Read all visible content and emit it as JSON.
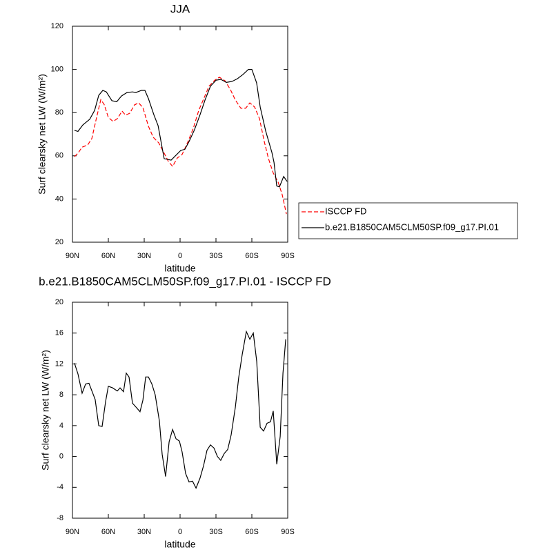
{
  "chart_data": [
    {
      "type": "line",
      "title": "JJA",
      "xlabel": "latitude",
      "ylabel": "Surf clearsky net LW (W/m²)",
      "xlim": [
        90,
        -90
      ],
      "ylim": [
        20,
        120
      ],
      "xticks": [
        {
          "value": 90,
          "label": "90N"
        },
        {
          "value": 60,
          "label": "60N"
        },
        {
          "value": 30,
          "label": "30N"
        },
        0,
        {
          "value": -30,
          "label": "30S"
        },
        {
          "value": -60,
          "label": "60S"
        },
        {
          "value": -90,
          "label": "90S"
        }
      ],
      "yticks": [
        20,
        40,
        60,
        80,
        100,
        120
      ],
      "legend": "right",
      "series": [
        {
          "name": "ISCCP FD",
          "color": "#ff0000",
          "dashed": true,
          "x": [
            88.3,
            85.4,
            81.9,
            77.3,
            73.8,
            69.8,
            66.3,
            63.5,
            60,
            56,
            52.5,
            48.5,
            45.6,
            42.1,
            38.1,
            34.6,
            31.1,
            26.5,
            22.5,
            17.9,
            13.3,
            9.8,
            6.3,
            2.3,
            -1.7,
            -6.4,
            -11,
            -15.6,
            -20.2,
            -24.2,
            -28.9,
            -32.9,
            -37.5,
            -42.1,
            -46.2,
            -50.8,
            -54.8,
            -58.3,
            -62.3,
            -66.4,
            -70.4,
            -73.9,
            -77.9,
            -82,
            -85.4,
            -88.9
          ],
          "values": [
            59.6,
            61.2,
            64,
            65,
            68,
            77.8,
            86,
            83.8,
            77.8,
            75.9,
            77.2,
            80.7,
            78.8,
            79.7,
            83.6,
            84.5,
            82.3,
            73.7,
            68.6,
            66,
            61.2,
            57.4,
            55.1,
            59,
            60.6,
            66.3,
            72.7,
            81,
            87,
            92.2,
            95,
            96.4,
            94.8,
            90.6,
            85.8,
            82,
            82,
            84.5,
            82.6,
            77.2,
            66.6,
            58.7,
            52,
            47.8,
            42,
            33
          ]
        },
        {
          "name": "b.e21.B1850CAM5CLM50SP.f09_g17.PI.01",
          "color": "#000000",
          "dashed": false,
          "x": [
            88.3,
            85.4,
            81.3,
            75.6,
            71.5,
            68,
            64.6,
            61.7,
            57,
            53,
            49,
            44.4,
            39.8,
            37,
            32.3,
            29.4,
            26.5,
            21.9,
            18.4,
            13.3,
            7.5,
            3.4,
            -0.6,
            -4,
            -7.5,
            -12,
            -16.7,
            -20.8,
            -25.4,
            -30,
            -34,
            -38.7,
            -43.3,
            -47.9,
            -52.5,
            -57.1,
            -60,
            -64,
            -67,
            -71.6,
            -76.8,
            -78.5,
            -80.8,
            -83.1,
            -86.6,
            -89.5
          ],
          "values": [
            71.8,
            71.3,
            74.3,
            76.9,
            81,
            88,
            90.3,
            89.6,
            85.5,
            85,
            87.7,
            89.3,
            89.6,
            89.3,
            90.3,
            90.3,
            86.5,
            79,
            74,
            58.7,
            58,
            60.3,
            62.5,
            63,
            66.6,
            72,
            79,
            85.8,
            92.2,
            95,
            95.4,
            94,
            94.4,
            95.7,
            97.6,
            100,
            100,
            93.8,
            82.6,
            71.4,
            61.5,
            57,
            46,
            45.6,
            50.4,
            48.1
          ]
        }
      ]
    },
    {
      "type": "line",
      "title": "b.e21.B1850CAM5CLM50SP.f09_g17.PI.01 - ISCCP FD",
      "xlabel": "latitude",
      "ylabel": "Surf clearsky net LW (W/m²)",
      "xlim": [
        90,
        -90
      ],
      "ylim": [
        -8,
        20
      ],
      "xticks": [
        {
          "value": 90,
          "label": "90N"
        },
        {
          "value": 60,
          "label": "60N"
        },
        {
          "value": 30,
          "label": "30N"
        },
        0,
        {
          "value": -30,
          "label": "30S"
        },
        {
          "value": -60,
          "label": "60S"
        },
        {
          "value": -90,
          "label": "90S"
        }
      ],
      "yticks": [
        -8,
        -4,
        0,
        4,
        8,
        12,
        16,
        20
      ],
      "color": "#000000",
      "x": [
        88.3,
        85.4,
        81.9,
        79,
        76.2,
        71,
        68,
        65.2,
        62.3,
        60,
        56.5,
        52.5,
        50.2,
        47.3,
        45,
        42.7,
        39.8,
        36.3,
        33.5,
        31.1,
        28.8,
        26.5,
        23.6,
        20.8,
        17.3,
        15,
        12.1,
        9.2,
        6.3,
        3.4,
        0.6,
        -1.7,
        -4.6,
        -7.5,
        -10.4,
        -13.3,
        -16.7,
        -19.6,
        -22.5,
        -25.4,
        -28.3,
        -31.2,
        -34,
        -37,
        -39.8,
        -42.7,
        -46.2,
        -49,
        -51.9,
        -55.4,
        -58.3,
        -61.2,
        -64.1,
        -67,
        -69.8,
        -72.7,
        -75.6,
        -77.9,
        -80.8,
        -83.7,
        -86,
        -88.3
      ],
      "values": [
        12.1,
        10.7,
        8.2,
        9.4,
        9.5,
        7.4,
        4,
        3.9,
        7.1,
        9.1,
        8.9,
        8.5,
        8.9,
        8.4,
        10.8,
        10.3,
        6.9,
        6.3,
        5.8,
        7.3,
        10.3,
        10.3,
        9.4,
        8,
        4.6,
        0.3,
        -2.6,
        1.9,
        3.5,
        2.3,
        2,
        0.6,
        -2.2,
        -3.3,
        -3.2,
        -4.1,
        -2.8,
        -1.2,
        0.8,
        1.5,
        1.1,
        0,
        -0.5,
        0.4,
        0.9,
        2.8,
        6.4,
        10.2,
        13.2,
        16.2,
        15.2,
        16,
        12.3,
        3.8,
        3.3,
        4.3,
        4.5,
        5.9,
        -1,
        2.6,
        10.8,
        15.2
      ]
    }
  ]
}
